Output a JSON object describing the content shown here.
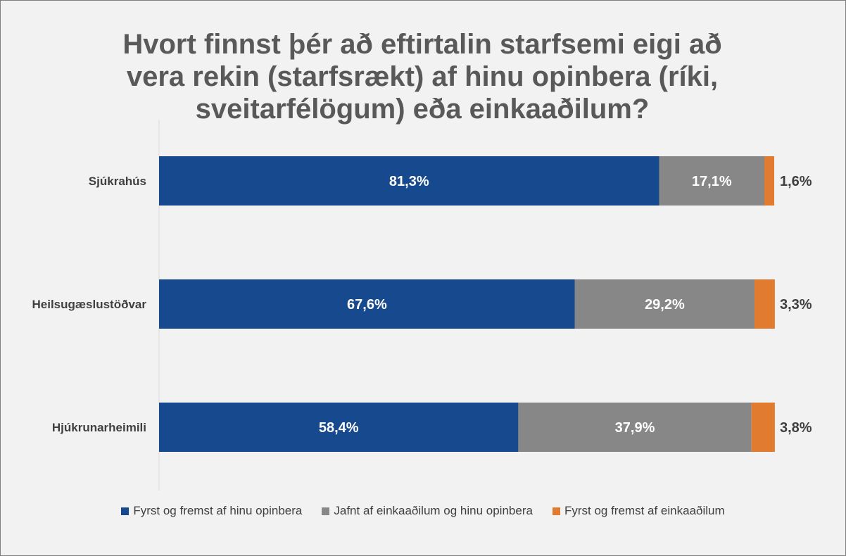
{
  "chart_data": {
    "type": "bar",
    "orientation": "horizontal",
    "stacked": true,
    "title_lines": [
      "Hvort finnst þér að eftirtalin starfsemi eigi að",
      "vera rekin (starfsrækt) af hinu opinbera (ríki,",
      "sveitarfélögum) eða einkaaðilum?"
    ],
    "categories": [
      "Sjúkrahús",
      "Heilsugæslustöðvar",
      "Hjúkrunarheimili"
    ],
    "series": [
      {
        "name": "Fyrst og fremst af hinu opinbera",
        "color": "#17498f",
        "values": [
          81.3,
          67.6,
          58.4
        ],
        "labels": [
          "81,3%",
          "67,6%",
          "58,4%"
        ]
      },
      {
        "name": "Jafnt af einkaaðilum og hinu opinbera",
        "color": "#878787",
        "values": [
          17.1,
          29.2,
          37.9
        ],
        "labels": [
          "17,1%",
          "29,2%",
          "37,9%"
        ]
      },
      {
        "name": "Fyrst og fremst af einkaaðilum",
        "color": "#e07b2f",
        "values": [
          1.6,
          3.3,
          3.8
        ],
        "labels": [
          "1,6%",
          "3,3%",
          "3,8%"
        ]
      }
    ],
    "xlim": [
      0,
      100
    ],
    "grid": false,
    "legend_position": "bottom"
  }
}
